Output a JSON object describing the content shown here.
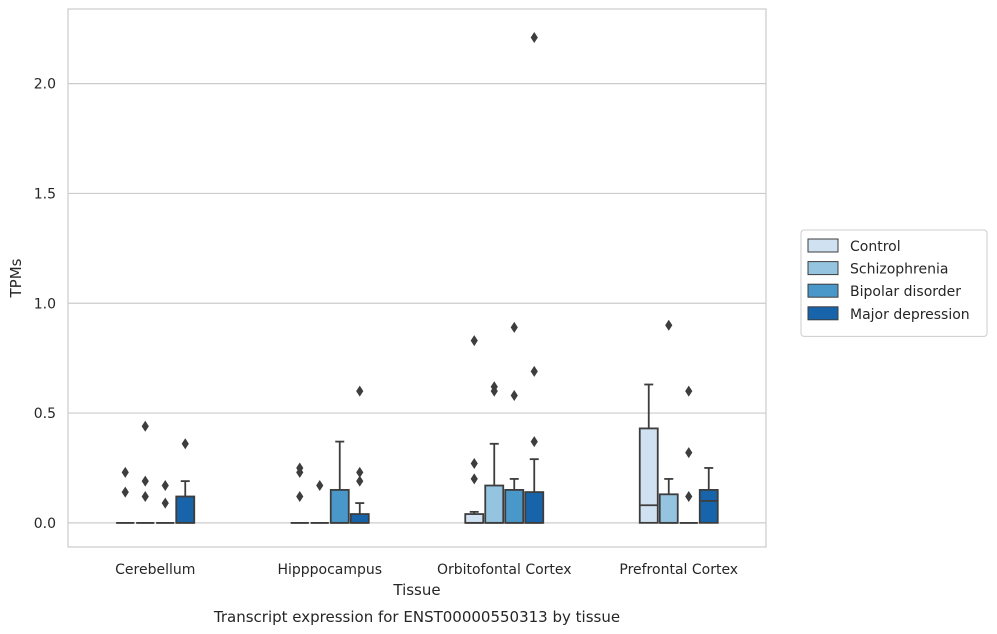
{
  "chart_data": {
    "type": "box",
    "xlabel": "Tissue",
    "ylabel": "TPMs",
    "caption": "Transcript expression for ENST00000550313 by tissue",
    "ylim": [
      -0.11,
      2.34
    ],
    "yticks": [
      0.0,
      0.5,
      1.0,
      1.5,
      2.0
    ],
    "ytick_labels": [
      "0.0",
      "0.5",
      "1.0",
      "1.5",
      "2.0"
    ],
    "grid": "horizontal",
    "legend_position": "right",
    "categories": [
      "Cerebellum",
      "Hipppocampus",
      "Orbitofontal Cortex",
      "Prefrontal Cortex"
    ],
    "series": [
      {
        "name": "Control",
        "color": "#d0e1f2",
        "boxes": [
          {
            "q1": 0.0,
            "median": 0.0,
            "q3": 0.0,
            "whislo": 0.0,
            "whishi": 0.0,
            "fliers": [
              0.23,
              0.14
            ]
          },
          {
            "q1": 0.0,
            "median": 0.0,
            "q3": 0.0,
            "whislo": 0.0,
            "whishi": 0.0,
            "fliers": [
              0.25,
              0.23,
              0.12
            ]
          },
          {
            "q1": 0.0,
            "median": 0.0,
            "q3": 0.04,
            "whislo": 0.0,
            "whishi": 0.05,
            "fliers": [
              0.83,
              0.27,
              0.2
            ]
          },
          {
            "q1": 0.0,
            "median": 0.08,
            "q3": 0.43,
            "whislo": 0.0,
            "whishi": 0.63,
            "fliers": []
          }
        ]
      },
      {
        "name": "Schizophrenia",
        "color": "#94c4df",
        "boxes": [
          {
            "q1": 0.0,
            "median": 0.0,
            "q3": 0.0,
            "whislo": 0.0,
            "whishi": 0.0,
            "fliers": [
              0.44,
              0.19,
              0.12
            ]
          },
          {
            "q1": 0.0,
            "median": 0.0,
            "q3": 0.0,
            "whislo": 0.0,
            "whishi": 0.0,
            "fliers": [
              0.17
            ]
          },
          {
            "q1": 0.0,
            "median": 0.0,
            "q3": 0.17,
            "whislo": 0.0,
            "whishi": 0.36,
            "fliers": [
              0.62,
              0.6
            ]
          },
          {
            "q1": 0.0,
            "median": 0.0,
            "q3": 0.13,
            "whislo": 0.0,
            "whishi": 0.2,
            "fliers": [
              0.9
            ]
          }
        ]
      },
      {
        "name": "Bipolar disorder",
        "color": "#4a98c9",
        "boxes": [
          {
            "q1": 0.0,
            "median": 0.0,
            "q3": 0.0,
            "whislo": 0.0,
            "whishi": 0.0,
            "fliers": [
              0.17,
              0.09
            ]
          },
          {
            "q1": 0.0,
            "median": 0.0,
            "q3": 0.15,
            "whislo": 0.0,
            "whishi": 0.37,
            "fliers": []
          },
          {
            "q1": 0.0,
            "median": 0.0,
            "q3": 0.15,
            "whislo": 0.0,
            "whishi": 0.2,
            "fliers": [
              0.89,
              0.58
            ]
          },
          {
            "q1": 0.0,
            "median": 0.0,
            "q3": 0.0,
            "whislo": 0.0,
            "whishi": 0.0,
            "fliers": [
              0.6,
              0.32,
              0.12
            ]
          }
        ]
      },
      {
        "name": "Major depression",
        "color": "#1764ab",
        "boxes": [
          {
            "q1": 0.0,
            "median": 0.0,
            "q3": 0.12,
            "whislo": 0.0,
            "whishi": 0.19,
            "fliers": [
              0.36
            ]
          },
          {
            "q1": 0.0,
            "median": 0.0,
            "q3": 0.04,
            "whislo": 0.0,
            "whishi": 0.09,
            "fliers": [
              0.6,
              0.23,
              0.19
            ]
          },
          {
            "q1": 0.0,
            "median": 0.0,
            "q3": 0.14,
            "whislo": 0.0,
            "whishi": 0.29,
            "fliers": [
              2.21,
              0.69,
              0.37
            ]
          },
          {
            "q1": 0.0,
            "median": 0.1,
            "q3": 0.15,
            "whislo": 0.0,
            "whishi": 0.25,
            "fliers": []
          }
        ]
      }
    ]
  }
}
